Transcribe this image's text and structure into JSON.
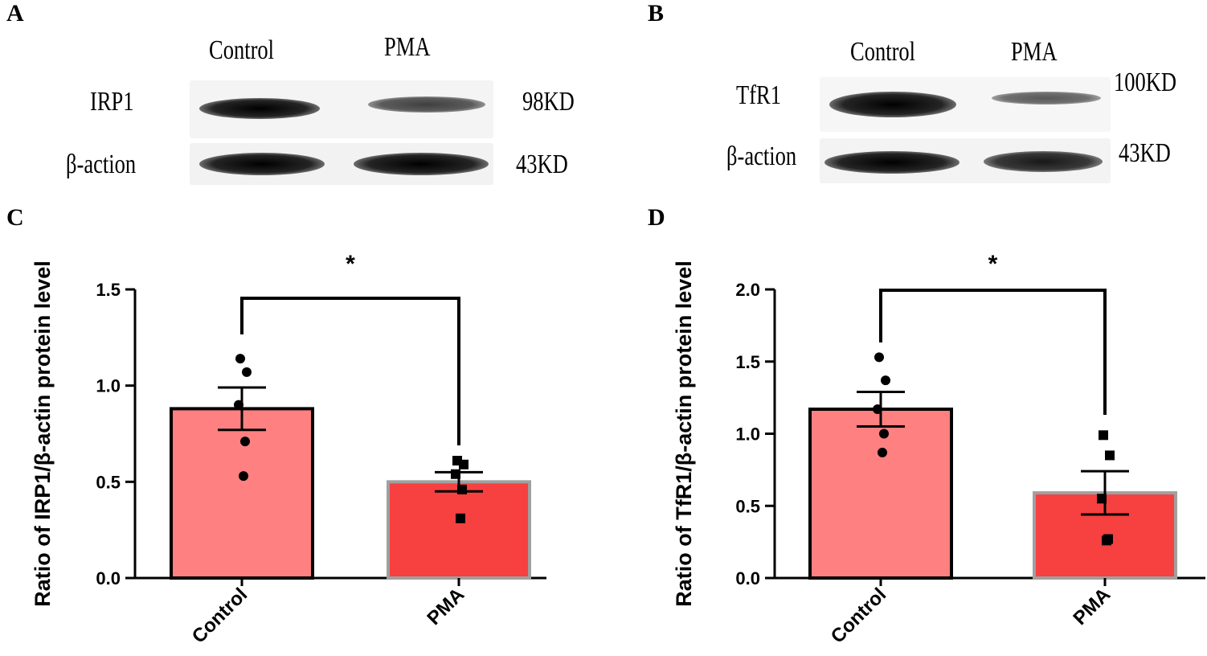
{
  "panels": {
    "a": {
      "letter": "A",
      "columns": [
        "Control",
        "PMA"
      ],
      "rows": [
        {
          "label": "IRP1",
          "size": "98KD",
          "band_intensity": [
            1.0,
            0.6
          ]
        },
        {
          "label": "β-action",
          "size": "43KD",
          "band_intensity": [
            1.0,
            1.0
          ]
        }
      ]
    },
    "b": {
      "letter": "B",
      "columns": [
        "Control",
        "PMA"
      ],
      "rows": [
        {
          "label": "TfR1",
          "size": "100KD",
          "band_intensity": [
            1.0,
            0.45
          ]
        },
        {
          "label": "β-action",
          "size": "43KD",
          "band_intensity": [
            1.0,
            0.85
          ]
        }
      ]
    },
    "c": {
      "letter": "C"
    },
    "d": {
      "letter": "D"
    }
  },
  "chart_data": [
    {
      "type": "bar",
      "panel": "C",
      "categories": [
        "Control",
        "PMA"
      ],
      "values": [
        0.88,
        0.5
      ],
      "sem": [
        0.11,
        0.05
      ],
      "points": [
        [
          1.14,
          1.07,
          0.9,
          0.71,
          0.53
        ],
        [
          0.61,
          0.59,
          0.54,
          0.46,
          0.31
        ]
      ],
      "point_markers": [
        "circle",
        "square"
      ],
      "bar_colors": [
        "#ff8080",
        "#f74040"
      ],
      "bar_edges": [
        "#000000",
        "#a0a0a0"
      ],
      "ylabel": "Ratio of IRP1/β-actin protein level",
      "ylim": [
        0,
        1.5
      ],
      "yticks": [
        "0.0",
        "0.5",
        "1.0",
        "1.5"
      ],
      "significance": "*"
    },
    {
      "type": "bar",
      "panel": "D",
      "categories": [
        "Control",
        "PMA"
      ],
      "values": [
        1.17,
        0.59
      ],
      "sem": [
        0.12,
        0.15
      ],
      "points": [
        [
          1.53,
          1.37,
          1.17,
          1.0,
          0.87
        ],
        [
          0.99,
          0.85,
          0.55,
          0.27,
          0.26
        ]
      ],
      "point_markers": [
        "circle",
        "square"
      ],
      "bar_colors": [
        "#ff8080",
        "#f74040"
      ],
      "bar_edges": [
        "#000000",
        "#a0a0a0"
      ],
      "ylabel": "Ratio of TfR1/β-actin protein level",
      "ylim": [
        0,
        2.0
      ],
      "yticks": [
        "0.0",
        "0.5",
        "1.0",
        "1.5",
        "2.0"
      ],
      "significance": "*"
    }
  ]
}
